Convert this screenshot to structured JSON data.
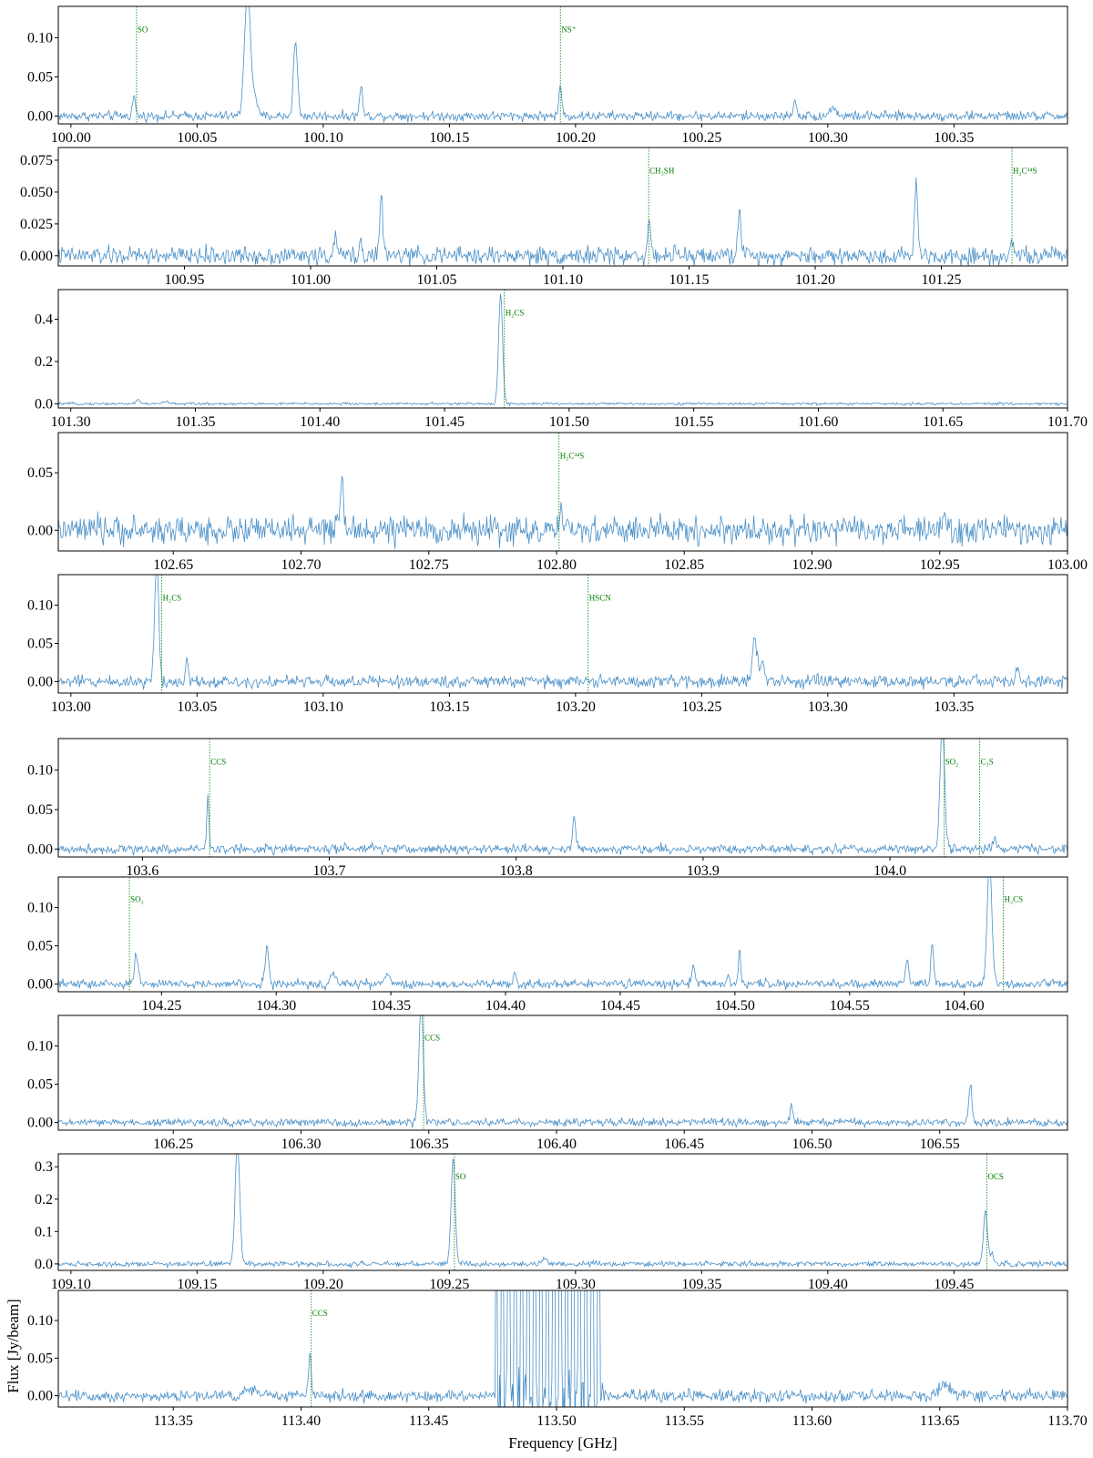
{
  "figure": {
    "xlabel": "Frequency [GHz]",
    "ylabel": "Flux [Jy/beam]",
    "line_color": "#4a90c8",
    "marker_color": "#008000",
    "panels": [
      {
        "id": "p1",
        "xlim": [
          99.995,
          100.395
        ],
        "ylim": [
          -0.01,
          0.14
        ],
        "xticks": [
          100.0,
          100.05,
          100.1,
          100.15,
          100.2,
          100.25,
          100.3,
          100.35
        ],
        "xdec": 2,
        "yticks": [
          0.0,
          0.05,
          0.1
        ],
        "ydec": 2,
        "noise": 0.003,
        "peaks": [
          [
            100.025,
            0.025,
            0.0006
          ],
          [
            100.07,
            0.16,
            0.0012
          ],
          [
            100.073,
            0.025,
            0.0008
          ],
          [
            100.089,
            0.095,
            0.0008
          ],
          [
            100.115,
            0.038,
            0.0006
          ],
          [
            100.194,
            0.038,
            0.0006
          ],
          [
            100.287,
            0.017,
            0.0008
          ],
          [
            100.302,
            0.012,
            0.0012
          ]
        ],
        "markers": [
          {
            "x": 100.026,
            "label": "SO"
          },
          {
            "x": 100.194,
            "label": "NS⁺"
          }
        ]
      },
      {
        "id": "p2",
        "xlim": [
          100.9,
          101.3
        ],
        "ylim": [
          -0.008,
          0.085
        ],
        "xticks": [
          100.95,
          101.0,
          101.05,
          101.1,
          101.15,
          101.2,
          101.25
        ],
        "xdec": 2,
        "yticks": [
          0.0,
          0.025,
          0.05,
          0.075
        ],
        "ydec": 3,
        "noise": 0.0035,
        "peaks": [
          [
            101.01,
            0.012,
            0.0008
          ],
          [
            101.028,
            0.048,
            0.0006
          ],
          [
            101.02,
            0.01,
            0.0006
          ],
          [
            101.134,
            0.025,
            0.0006
          ],
          [
            101.17,
            0.04,
            0.0006
          ],
          [
            101.24,
            0.055,
            0.0007
          ],
          [
            101.278,
            0.015,
            0.0006
          ]
        ],
        "markers": [
          {
            "x": 101.134,
            "label": "CH₃SH"
          },
          {
            "x": 101.278,
            "label": "H₂C³⁴S"
          }
        ]
      },
      {
        "id": "p3",
        "xlim": [
          101.295,
          101.7
        ],
        "ylim": [
          -0.02,
          0.54
        ],
        "xticks": [
          101.3,
          101.35,
          101.4,
          101.45,
          101.5,
          101.55,
          101.6,
          101.65,
          101.7
        ],
        "xdec": 2,
        "yticks": [
          0.0,
          0.2,
          0.4
        ],
        "ydec": 1,
        "noise": 0.003,
        "peaks": [
          [
            101.4725,
            0.52,
            0.0008
          ],
          [
            101.327,
            0.02,
            0.0008
          ],
          [
            101.338,
            0.012,
            0.001
          ]
        ],
        "markers": [
          {
            "x": 101.474,
            "label": "H₂CS"
          }
        ]
      },
      {
        "id": "p4",
        "xlim": [
          102.605,
          103.0
        ],
        "ylim": [
          -0.018,
          0.085
        ],
        "xticks": [
          102.65,
          102.7,
          102.75,
          102.8,
          102.85,
          102.9,
          102.95,
          103.0
        ],
        "xdec": 2,
        "yticks": [
          0.0,
          0.05
        ],
        "ydec": 2,
        "noise": 0.006,
        "peaks": [
          [
            102.716,
            0.035,
            0.0008
          ],
          [
            102.802,
            0.012,
            0.0006
          ],
          [
            102.952,
            0.012,
            0.0006
          ]
        ],
        "markers": [
          {
            "x": 102.801,
            "label": "H₂C³⁴S"
          }
        ]
      },
      {
        "id": "p5",
        "xlim": [
          102.995,
          103.395
        ],
        "ylim": [
          -0.015,
          0.14
        ],
        "xticks": [
          103.0,
          103.05,
          103.1,
          103.15,
          103.2,
          103.25,
          103.3,
          103.35
        ],
        "xdec": 2,
        "yticks": [
          0.0,
          0.05,
          0.1
        ],
        "ydec": 2,
        "noise": 0.004,
        "peaks": [
          [
            103.034,
            0.16,
            0.0008
          ],
          [
            103.046,
            0.03,
            0.0006
          ],
          [
            103.271,
            0.055,
            0.001
          ],
          [
            103.274,
            0.025,
            0.0008
          ],
          [
            103.375,
            0.015,
            0.0008
          ],
          [
            103.21,
            0.008,
            0.0006
          ]
        ],
        "markers": [
          {
            "x": 103.036,
            "label": "H₂CS"
          },
          {
            "x": 103.205,
            "label": "HSCN"
          }
        ]
      },
      {
        "id": "p6",
        "xlim": [
          103.555,
          104.095
        ],
        "ylim": [
          -0.01,
          0.14
        ],
        "xticks": [
          103.6,
          103.7,
          103.8,
          103.9,
          104.0
        ],
        "xdec": 1,
        "yticks": [
          0.0,
          0.05,
          0.1
        ],
        "ydec": 2,
        "noise": 0.003,
        "peaks": [
          [
            103.635,
            0.068,
            0.0006
          ],
          [
            103.831,
            0.04,
            0.0008
          ],
          [
            104.028,
            0.16,
            0.0012
          ],
          [
            104.056,
            0.015,
            0.001
          ]
        ],
        "markers": [
          {
            "x": 103.636,
            "label": "CCS"
          },
          {
            "x": 104.029,
            "label": "SO₂"
          },
          {
            "x": 104.048,
            "label": "C₃S"
          }
        ]
      },
      {
        "id": "p7",
        "xlim": [
          104.205,
          104.645
        ],
        "ylim": [
          -0.01,
          0.14
        ],
        "xticks": [
          104.25,
          104.3,
          104.35,
          104.4,
          104.45,
          104.5,
          104.55,
          104.6
        ],
        "xdec": 2,
        "yticks": [
          0.0,
          0.05,
          0.1
        ],
        "ydec": 2,
        "noise": 0.003,
        "peaks": [
          [
            104.239,
            0.04,
            0.0008
          ],
          [
            104.296,
            0.05,
            0.0008
          ],
          [
            104.325,
            0.012,
            0.001
          ],
          [
            104.348,
            0.015,
            0.001
          ],
          [
            104.404,
            0.012,
            0.0008
          ],
          [
            104.482,
            0.025,
            0.0008
          ],
          [
            104.497,
            0.012,
            0.0006
          ],
          [
            104.502,
            0.045,
            0.0005
          ],
          [
            104.575,
            0.035,
            0.0006
          ],
          [
            104.586,
            0.055,
            0.0006
          ],
          [
            104.611,
            0.16,
            0.001
          ]
        ],
        "markers": [
          {
            "x": 104.236,
            "label": "SO₂"
          },
          {
            "x": 104.617,
            "label": "H₂CS"
          }
        ]
      },
      {
        "id": "p8",
        "xlim": [
          106.205,
          106.6
        ],
        "ylim": [
          -0.01,
          0.14
        ],
        "xticks": [
          106.25,
          106.3,
          106.35,
          106.4,
          106.45,
          106.5,
          106.55
        ],
        "xdec": 2,
        "yticks": [
          0.0,
          0.05,
          0.1
        ],
        "ydec": 2,
        "noise": 0.0025,
        "peaks": [
          [
            106.347,
            0.16,
            0.0008
          ],
          [
            106.492,
            0.022,
            0.0006
          ],
          [
            106.562,
            0.048,
            0.0006
          ]
        ],
        "markers": [
          {
            "x": 106.348,
            "label": "CCS"
          }
        ]
      },
      {
        "id": "p9",
        "xlim": [
          109.095,
          109.495
        ],
        "ylim": [
          -0.02,
          0.34
        ],
        "xticks": [
          109.1,
          109.15,
          109.2,
          109.25,
          109.3,
          109.35,
          109.4,
          109.45
        ],
        "xdec": 2,
        "yticks": [
          0.0,
          0.1,
          0.2,
          0.3
        ],
        "ydec": 1,
        "noise": 0.004,
        "peaks": [
          [
            109.166,
            0.38,
            0.0009
          ],
          [
            109.2515,
            0.33,
            0.0008
          ],
          [
            109.4625,
            0.16,
            0.0008
          ],
          [
            109.465,
            0.03,
            0.0008
          ],
          [
            109.288,
            0.02,
            0.0008
          ]
        ],
        "markers": [
          {
            "x": 109.252,
            "label": "SO"
          },
          {
            "x": 109.463,
            "label": "OCS"
          }
        ]
      },
      {
        "id": "p10",
        "xlim": [
          113.305,
          113.7
        ],
        "ylim": [
          -0.015,
          0.14
        ],
        "xticks": [
          113.35,
          113.4,
          113.45,
          113.5,
          113.55,
          113.6,
          113.65,
          113.7
        ],
        "xdec": 2,
        "yticks": [
          0.0,
          0.05,
          0.1
        ],
        "ydec": 2,
        "noise": 0.004,
        "peaks": [
          [
            113.4035,
            0.055,
            0.0006
          ],
          [
            113.652,
            0.015,
            0.002
          ],
          [
            113.38,
            0.01,
            0.002
          ]
        ],
        "bad_region": [
          113.476,
          113.518
        ],
        "markers": [
          {
            "x": 113.404,
            "label": "CCS"
          }
        ]
      }
    ]
  }
}
